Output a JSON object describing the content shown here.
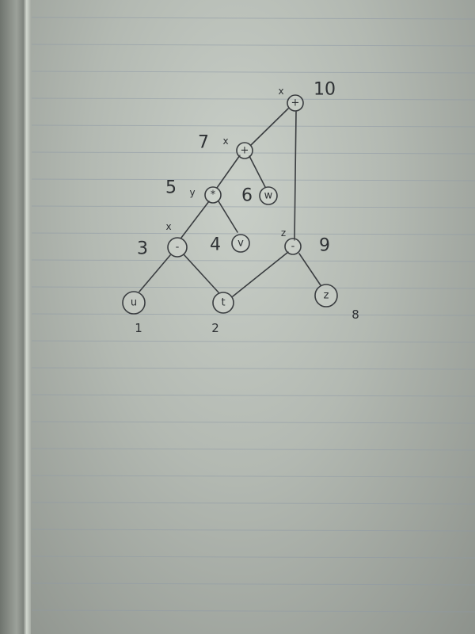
{
  "photo": {
    "subject": "hand-drawn expression tree on ruled notebook paper",
    "colors": {
      "paper": "#c4cac3",
      "ink": "#3a3d40",
      "rule": "#8f9aa6"
    }
  },
  "tree": {
    "nodes": [
      {
        "id": "n10",
        "op": "+",
        "order": "10",
        "tag": "x"
      },
      {
        "id": "n7",
        "op": "+",
        "order": "7",
        "tag": "x"
      },
      {
        "id": "n5",
        "op": "*",
        "order": "5",
        "tag": "y"
      },
      {
        "id": "n6",
        "op": "w",
        "order": "6",
        "tag": ""
      },
      {
        "id": "n3",
        "op": "-",
        "order": "3",
        "tag": "x"
      },
      {
        "id": "n4",
        "op": "v",
        "order": "4",
        "tag": ""
      },
      {
        "id": "n9",
        "op": "-",
        "order": "9",
        "tag": "z"
      },
      {
        "id": "n1",
        "op": "u",
        "order": "1",
        "tag": ""
      },
      {
        "id": "n2",
        "op": "t",
        "order": "2",
        "tag": ""
      },
      {
        "id": "n8",
        "op": "z",
        "order": "8",
        "tag": ""
      }
    ]
  }
}
